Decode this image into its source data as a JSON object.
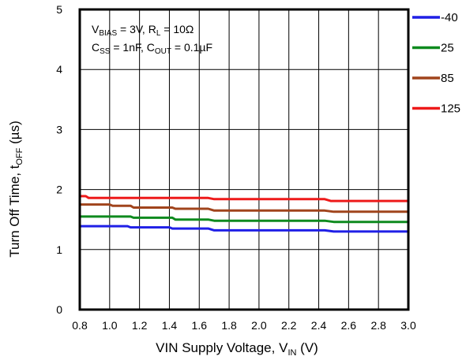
{
  "chart_data": {
    "type": "line",
    "xlabel_main": "VIN Supply Voltage, V",
    "xlabel_sub": "IN",
    "xlabel_tail": " (V)",
    "ylabel_main": "Turn Off Time, t",
    "ylabel_sub": "OFF",
    "ylabel_tail": " (µs)",
    "xlim": [
      0.8,
      3.0
    ],
    "ylim": [
      0,
      5
    ],
    "xticks": [
      "0.8",
      "1.0",
      "1.2",
      "1.4",
      "1.6",
      "1.8",
      "2.0",
      "2.2",
      "2.4",
      "2.6",
      "2.8",
      "3.0"
    ],
    "yticks": [
      "0",
      "1",
      "2",
      "3",
      "4",
      "5"
    ],
    "grid": true,
    "legend_placement": "right",
    "annotation": {
      "line1": {
        "v": "V",
        "bias_sub": "BIAS",
        "mid": " = 3V, R",
        "l_sub": "L",
        "end": " = 10Ω"
      },
      "line2": {
        "c": "C",
        "ss_sub": "SS",
        "mid": " = 1nF, C",
        "out_sub": "OUT",
        "end": " = 0.1µF"
      }
    },
    "series": [
      {
        "name": "-40",
        "color": "#1f1fe6",
        "x": [
          0.8,
          0.84,
          1.12,
          1.14,
          1.4,
          1.42,
          1.66,
          1.7,
          2.44,
          2.5,
          3.0
        ],
        "y": [
          1.39,
          1.39,
          1.39,
          1.37,
          1.37,
          1.35,
          1.35,
          1.32,
          1.32,
          1.3,
          1.3
        ]
      },
      {
        "name": "25",
        "color": "#0e8a1e",
        "x": [
          0.8,
          0.84,
          1.14,
          1.16,
          1.42,
          1.44,
          1.66,
          1.7,
          2.44,
          2.5,
          3.0
        ],
        "y": [
          1.55,
          1.55,
          1.55,
          1.53,
          1.53,
          1.5,
          1.5,
          1.48,
          1.48,
          1.46,
          1.46
        ]
      },
      {
        "name": "85",
        "color": "#a0441c",
        "x": [
          0.8,
          0.84,
          1.0,
          1.02,
          1.14,
          1.16,
          1.42,
          1.44,
          1.66,
          1.7,
          2.44,
          2.5,
          3.0
        ],
        "y": [
          1.75,
          1.75,
          1.75,
          1.73,
          1.73,
          1.7,
          1.7,
          1.68,
          1.68,
          1.65,
          1.65,
          1.63,
          1.63
        ]
      },
      {
        "name": "125",
        "color": "#ee1a1a",
        "x": [
          0.8,
          0.84,
          0.86,
          1.66,
          1.7,
          2.44,
          2.48,
          3.0
        ],
        "y": [
          1.89,
          1.89,
          1.86,
          1.86,
          1.84,
          1.84,
          1.81,
          1.81
        ]
      }
    ]
  }
}
